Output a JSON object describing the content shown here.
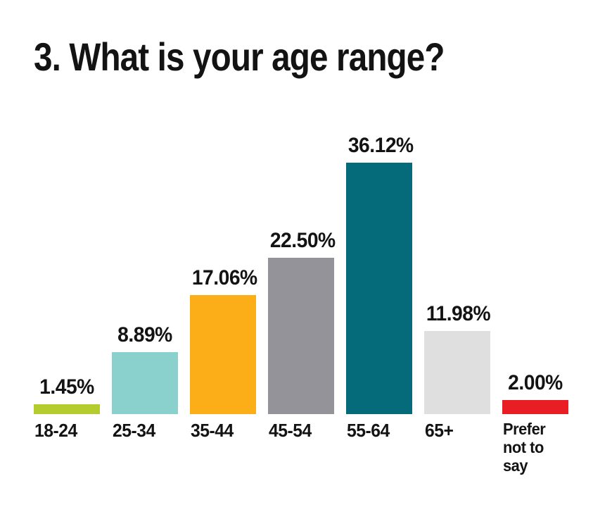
{
  "chart_data": {
    "type": "bar",
    "title": "3. What is your age range?",
    "categories": [
      "18-24",
      "25-34",
      "35-44",
      "45-54",
      "55-64",
      "65+",
      "Prefer\nnot to say"
    ],
    "values": [
      1.45,
      8.89,
      17.06,
      22.5,
      36.12,
      11.98,
      2.0
    ],
    "value_labels": [
      "1.45%",
      "8.89%",
      "17.06%",
      "22.50%",
      "36.12%",
      "11.98%",
      "2.00%"
    ],
    "colors": [
      "#b4cc2e",
      "#8ad1cd",
      "#fbae17",
      "#949399",
      "#056a79",
      "#dfdfdf",
      "#e91e25"
    ],
    "xlabel": "",
    "ylabel": "",
    "ylim": [
      0,
      40
    ],
    "grid": false,
    "legend": false,
    "axes": "hidden",
    "value_label_position": "above-bar",
    "background_color": "#ffffff",
    "text_color": "#131313"
  }
}
